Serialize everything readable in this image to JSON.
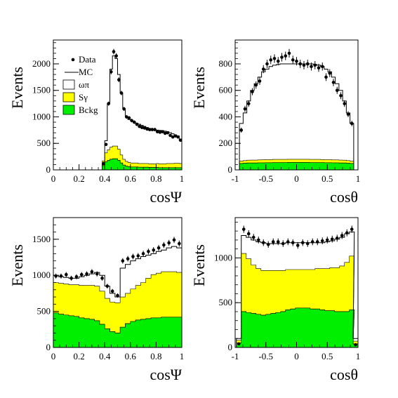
{
  "colors": {
    "bckg": "#00ee00",
    "sgamma": "#ffff00",
    "omegapi": "#ffffff",
    "data": "#000000",
    "mc": "#000000"
  },
  "legend": {
    "placement": "top-left of top-left panel",
    "entries": [
      {
        "label": "Data",
        "marker": "point"
      },
      {
        "label": "MC",
        "marker": "line"
      },
      {
        "label": "ωπ",
        "marker": "box",
        "color": "#ffffff"
      },
      {
        "label": "Sγ",
        "marker": "box",
        "color": "#ffff00"
      },
      {
        "label": "Bckg",
        "marker": "box",
        "color": "#00ee00"
      }
    ]
  },
  "chart_data": [
    {
      "type": "area",
      "ylabel": "Events",
      "xlabel": "cosΨ",
      "xlim": [
        0,
        1
      ],
      "ylim": [
        0,
        2450
      ],
      "xticks": [
        0,
        0.2,
        0.4,
        0.6,
        0.8,
        1
      ],
      "xtick_labels": [
        "0",
        "0.2",
        "0.4",
        "0.6",
        "0.8",
        "1"
      ],
      "yticks": [
        0,
        500,
        1000,
        1500,
        2000
      ],
      "ytick_labels": [
        "0",
        "500",
        "1000",
        "1500",
        "2000"
      ],
      "x": [
        0.39,
        0.41,
        0.43,
        0.45,
        0.47,
        0.49,
        0.51,
        0.53,
        0.55,
        0.57,
        0.59,
        0.61,
        0.63,
        0.65,
        0.67,
        0.69,
        0.71,
        0.73,
        0.75,
        0.77,
        0.79,
        0.81,
        0.83,
        0.85,
        0.87,
        0.89,
        0.91,
        0.93,
        0.95,
        0.97,
        0.99
      ],
      "series": [
        {
          "name": "Bckg",
          "kind": "stack",
          "values": [
            80,
            150,
            180,
            200,
            210,
            210,
            180,
            130,
            90,
            70,
            60,
            55,
            55,
            55,
            50,
            50,
            50,
            50,
            45,
            45,
            45,
            45,
            40,
            40,
            40,
            40,
            40,
            40,
            40,
            40,
            40
          ]
        },
        {
          "name": "Sγ",
          "kind": "stack",
          "values": [
            90,
            170,
            200,
            230,
            240,
            240,
            210,
            150,
            110,
            90,
            80,
            75,
            75,
            75,
            70,
            70,
            70,
            70,
            70,
            70,
            70,
            75,
            75,
            75,
            75,
            80,
            80,
            80,
            85,
            85,
            80
          ]
        },
        {
          "name": "MC",
          "kind": "step",
          "values": [
            100,
            550,
            1250,
            1900,
            2150,
            2100,
            1800,
            1450,
            1150,
            1000,
            950,
            930,
            900,
            880,
            860,
            840,
            820,
            800,
            780,
            770,
            760,
            750,
            745,
            740,
            730,
            720,
            700,
            680,
            660,
            640,
            560
          ]
        },
        {
          "name": "Data",
          "kind": "points",
          "values": [
            120,
            480,
            1250,
            1850,
            2230,
            2150,
            1700,
            1450,
            1150,
            1000,
            980,
            930,
            900,
            860,
            820,
            800,
            790,
            770,
            760,
            760,
            760,
            720,
            710,
            720,
            690,
            700,
            650,
            620,
            640,
            620,
            560
          ]
        }
      ]
    },
    {
      "type": "area",
      "ylabel": "Events",
      "xlabel": "cosθ",
      "xlim": [
        -1,
        1
      ],
      "ylim": [
        0,
        980
      ],
      "xticks": [
        -1,
        -0.5,
        0,
        0.5,
        1
      ],
      "xtick_labels": [
        "-1",
        "-0.5",
        "0",
        "0.5",
        "1"
      ],
      "yticks": [
        0,
        200,
        400,
        600,
        800
      ],
      "ytick_labels": [
        "0",
        "200",
        "400",
        "600",
        "800"
      ],
      "x": [
        -0.9,
        -0.84,
        -0.78,
        -0.72,
        -0.66,
        -0.6,
        -0.54,
        -0.48,
        -0.42,
        -0.36,
        -0.3,
        -0.24,
        -0.18,
        -0.12,
        -0.06,
        0,
        0.06,
        0.12,
        0.18,
        0.24,
        0.3,
        0.36,
        0.42,
        0.48,
        0.54,
        0.6,
        0.66,
        0.72,
        0.78,
        0.84,
        0.9
      ],
      "series": [
        {
          "name": "Bckg",
          "kind": "stack",
          "values": [
            48,
            50,
            52,
            52,
            52,
            53,
            53,
            54,
            54,
            55,
            55,
            55,
            55,
            56,
            56,
            56,
            56,
            56,
            56,
            55,
            55,
            55,
            55,
            54,
            54,
            53,
            53,
            52,
            52,
            50,
            48
          ]
        },
        {
          "name": "Sγ",
          "kind": "stack",
          "values": [
            18,
            20,
            21,
            22,
            22,
            22,
            23,
            23,
            23,
            24,
            24,
            24,
            24,
            24,
            24,
            24,
            24,
            24,
            24,
            24,
            24,
            24,
            23,
            23,
            23,
            22,
            22,
            22,
            21,
            20,
            18
          ]
        },
        {
          "name": "MC",
          "kind": "step",
          "values": [
            350,
            430,
            520,
            600,
            650,
            700,
            740,
            760,
            780,
            790,
            795,
            800,
            800,
            800,
            800,
            800,
            800,
            800,
            800,
            800,
            795,
            790,
            780,
            760,
            740,
            700,
            650,
            600,
            520,
            430,
            350
          ]
        },
        {
          "name": "Data",
          "kind": "points",
          "values": [
            300,
            460,
            500,
            590,
            640,
            670,
            760,
            800,
            830,
            840,
            820,
            850,
            860,
            880,
            830,
            820,
            800,
            790,
            800,
            780,
            790,
            770,
            780,
            700,
            730,
            660,
            600,
            560,
            500,
            420,
            350
          ]
        }
      ]
    },
    {
      "type": "area",
      "ylabel": "Events",
      "xlabel": "cosΨ",
      "xlim": [
        0,
        1
      ],
      "ylim": [
        0,
        1800
      ],
      "xticks": [
        0,
        0.2,
        0.4,
        0.6,
        0.8,
        1
      ],
      "xtick_labels": [
        "0",
        "0.2",
        "0.4",
        "0.6",
        "0.8",
        "1"
      ],
      "yticks": [
        0,
        500,
        1000,
        1500
      ],
      "ytick_labels": [
        "0",
        "500",
        "1000",
        "1500"
      ],
      "x": [
        0.02,
        0.06,
        0.1,
        0.14,
        0.18,
        0.22,
        0.26,
        0.3,
        0.34,
        0.38,
        0.42,
        0.46,
        0.5,
        0.54,
        0.58,
        0.62,
        0.66,
        0.7,
        0.74,
        0.78,
        0.82,
        0.86,
        0.9,
        0.94,
        0.98
      ],
      "series": [
        {
          "name": "Bckg",
          "kind": "stack",
          "values": [
            480,
            460,
            450,
            440,
            430,
            410,
            400,
            390,
            370,
            320,
            260,
            220,
            200,
            280,
            330,
            360,
            380,
            390,
            400,
            410,
            410,
            420,
            420,
            420,
            420
          ]
        },
        {
          "name": "Sγ",
          "kind": "stack",
          "values": [
            420,
            430,
            430,
            430,
            440,
            450,
            460,
            470,
            480,
            460,
            420,
            410,
            420,
            420,
            420,
            450,
            480,
            510,
            560,
            600,
            620,
            630,
            630,
            630,
            620
          ]
        },
        {
          "name": "MC",
          "kind": "step",
          "values": [
            1000,
            980,
            970,
            960,
            960,
            980,
            1000,
            1020,
            1040,
            1000,
            850,
            750,
            700,
            1100,
            1150,
            1200,
            1230,
            1260,
            1280,
            1300,
            1330,
            1350,
            1380,
            1400,
            1380
          ]
        },
        {
          "name": "Data",
          "kind": "points",
          "values": [
            990,
            990,
            1010,
            960,
            980,
            1010,
            1020,
            1050,
            1020,
            960,
            850,
            780,
            720,
            1200,
            1230,
            1260,
            1270,
            1300,
            1330,
            1350,
            1380,
            1420,
            1450,
            1490,
            1440
          ]
        }
      ]
    },
    {
      "type": "area",
      "ylabel": "Events",
      "xlabel": "cosθ",
      "xlim": [
        -1,
        1
      ],
      "ylim": [
        0,
        1450
      ],
      "xticks": [
        -1,
        -0.5,
        0,
        0.5,
        1
      ],
      "xtick_labels": [
        "-1",
        "-0.5",
        "0",
        "0.5",
        "1"
      ],
      "yticks": [
        0,
        500,
        1000
      ],
      "ytick_labels": [
        "0",
        "500",
        "1000"
      ],
      "x": [
        -0.94,
        -0.86,
        -0.78,
        -0.7,
        -0.62,
        -0.54,
        -0.46,
        -0.38,
        -0.3,
        -0.22,
        -0.14,
        -0.06,
        0.02,
        0.1,
        0.18,
        0.26,
        0.34,
        0.42,
        0.5,
        0.58,
        0.66,
        0.74,
        0.82,
        0.9,
        0.96
      ],
      "series": [
        {
          "name": "Bckg",
          "kind": "stack",
          "values": [
            50,
            400,
            390,
            380,
            370,
            360,
            370,
            380,
            390,
            400,
            420,
            430,
            440,
            440,
            440,
            430,
            430,
            420,
            410,
            410,
            400,
            400,
            400,
            420,
            40
          ]
        },
        {
          "name": "Sγ",
          "kind": "stack",
          "values": [
            30,
            650,
            600,
            540,
            510,
            500,
            490,
            480,
            470,
            460,
            450,
            440,
            430,
            430,
            430,
            440,
            450,
            460,
            470,
            480,
            490,
            510,
            550,
            600,
            30
          ]
        },
        {
          "name": "MC",
          "kind": "step",
          "values": [
            100,
            1250,
            1230,
            1200,
            1180,
            1170,
            1160,
            1160,
            1160,
            1160,
            1170,
            1170,
            1170,
            1170,
            1170,
            1170,
            1170,
            1170,
            1180,
            1190,
            1210,
            1230,
            1270,
            1290,
            100
          ]
        },
        {
          "name": "Data",
          "kind": "points",
          "values": [
            40,
            1320,
            1270,
            1230,
            1200,
            1170,
            1150,
            1180,
            1180,
            1160,
            1180,
            1170,
            1140,
            1170,
            1160,
            1180,
            1180,
            1190,
            1200,
            1210,
            1220,
            1250,
            1280,
            1320,
            30
          ]
        }
      ]
    }
  ]
}
